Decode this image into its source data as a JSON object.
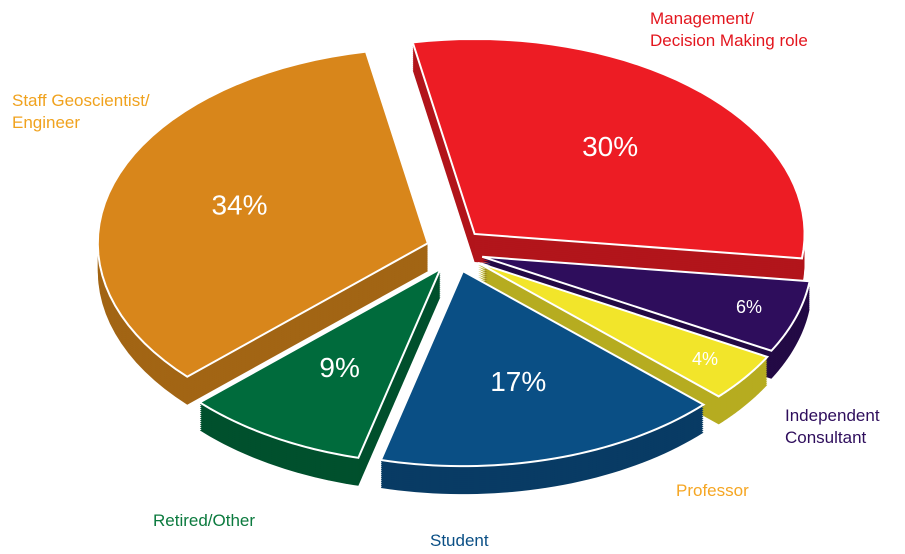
{
  "chart_data": {
    "type": "pie",
    "categories": [
      "Management/\nDecision Making role",
      "Independent\nConsultant",
      "Professor",
      "Student",
      "Retired/Other",
      "Staff Geoscientist/\nEngineer"
    ],
    "values": [
      30,
      6,
      4,
      17,
      9,
      34
    ],
    "value_labels": [
      "30%",
      "6%",
      "4%",
      "17%",
      "9%",
      "34%"
    ],
    "colors": [
      "#ed1c24",
      "#2e0d5c",
      "#f2e52a",
      "#0a4f85",
      "#006b3c",
      "#d8861b"
    ],
    "label_colors": [
      "#e3161e",
      "#2e0d5c",
      "#f5a623",
      "#0a4f85",
      "#0b7a3e",
      "#f0a21e"
    ]
  }
}
